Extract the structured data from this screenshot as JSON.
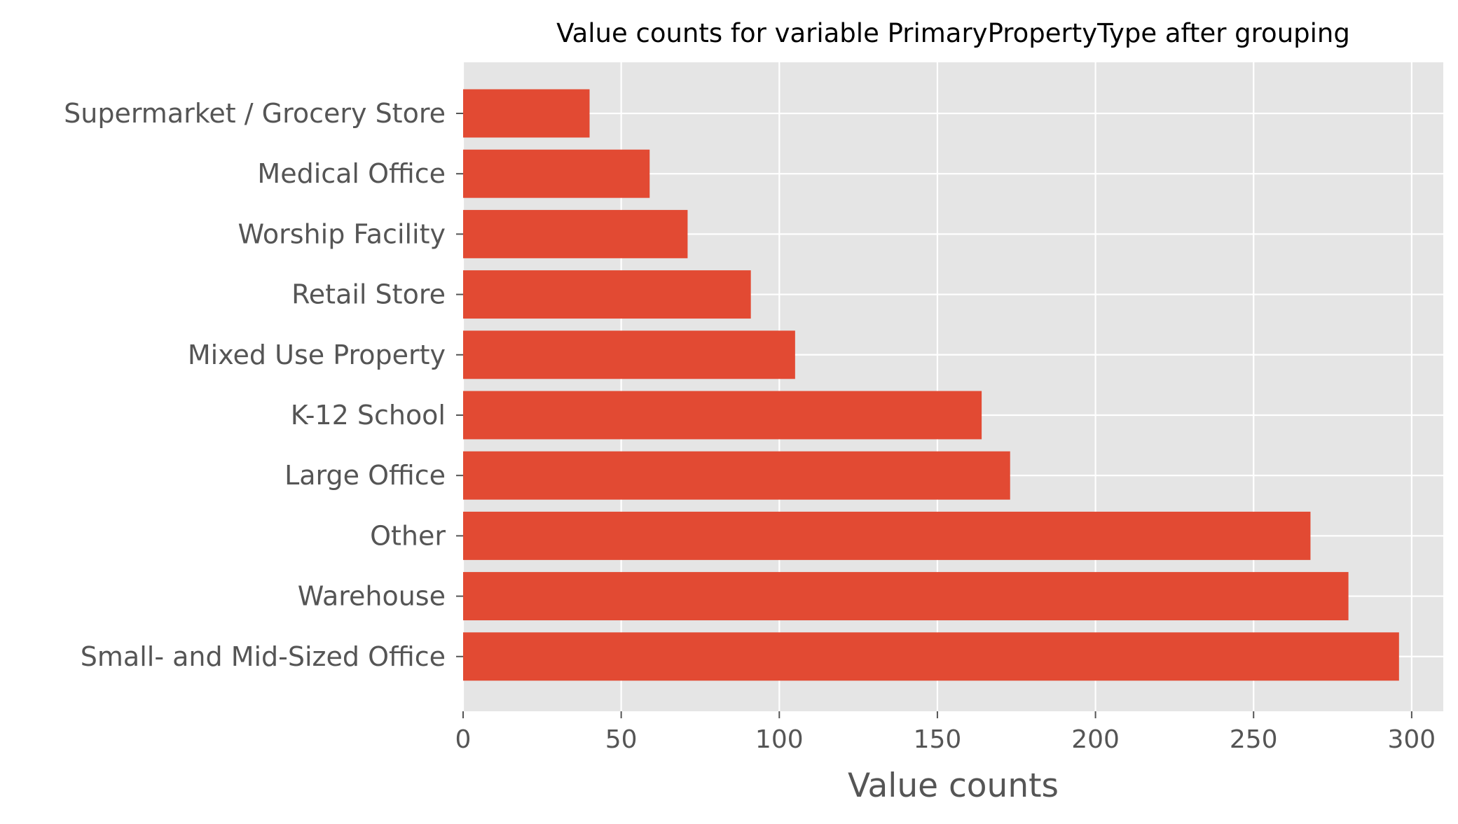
{
  "chart_data": {
    "type": "bar",
    "orientation": "horizontal",
    "title": "Value counts for variable PrimaryPropertyType after grouping",
    "xlabel": "Value counts",
    "ylabel": "",
    "categories": [
      "Small- and Mid-Sized Office",
      "Warehouse",
      "Other",
      "Large Office",
      "K-12 School",
      "Mixed Use Property",
      "Retail Store",
      "Worship Facility",
      "Medical Office",
      "Supermarket / Grocery Store"
    ],
    "values": [
      296,
      280,
      268,
      173,
      164,
      105,
      91,
      71,
      59,
      40
    ],
    "xlim": [
      0,
      310
    ],
    "xticks": [
      0,
      50,
      100,
      150,
      200,
      250,
      300
    ],
    "grid": true,
    "legend": "none",
    "colors": {
      "bar": "#E24A33",
      "plot_background": "#E5E5E5",
      "grid": "#FFFFFF",
      "text": "#555555",
      "title": "#000000"
    }
  }
}
